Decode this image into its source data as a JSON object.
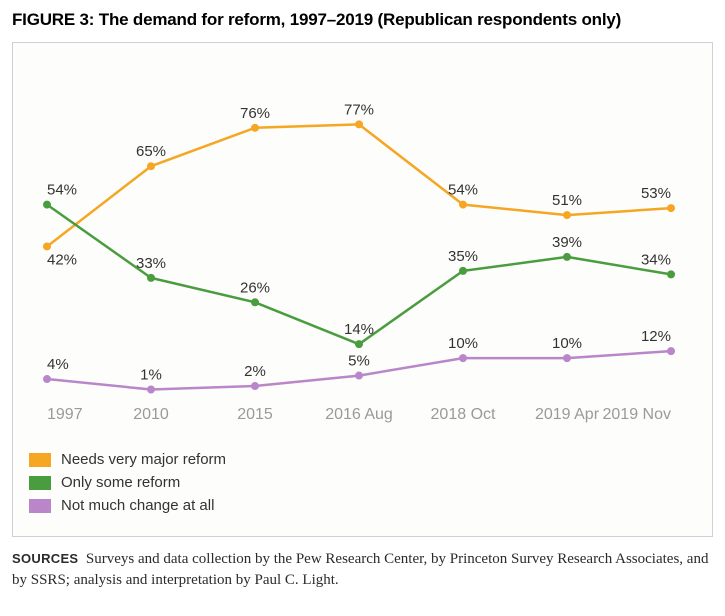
{
  "title": "FIGURE 3: The demand for reform, 1997–2019 (Republican respondents only)",
  "chart": {
    "type": "line",
    "background_color": "#fdfdfb",
    "border_color": "#d0d0d0",
    "categories": [
      "1997",
      "2010",
      "2015",
      "2016 Aug",
      "2018 Oct",
      "2019 Apr",
      "2019 Nov"
    ],
    "ylim": [
      0,
      90
    ],
    "x_label_color": "#9a9a9a",
    "x_label_fontsize": 16,
    "data_label_fontsize": 15,
    "data_label_color": "#333333",
    "line_width": 2.5,
    "marker_radius": 4,
    "series": [
      {
        "id": "major",
        "label": "Needs very major reform",
        "color": "#f5a623",
        "values": [
          42,
          65,
          76,
          77,
          54,
          51,
          53
        ]
      },
      {
        "id": "some",
        "label": "Only some reform",
        "color": "#4a9d3f",
        "values": [
          54,
          33,
          26,
          14,
          35,
          39,
          34
        ]
      },
      {
        "id": "none",
        "label": "Not much change at all",
        "color": "#b986c9",
        "values": [
          4,
          1,
          2,
          5,
          10,
          10,
          12
        ]
      }
    ],
    "legend": {
      "swatch_width": 22,
      "swatch_height": 14,
      "fontsize": 15
    }
  },
  "sources": {
    "label": "SOURCES",
    "text": "Surveys and data collection by the Pew Research Center, by Princeton Survey Research Associates, and by SSRS; analysis and interpretation by Paul C. Light."
  }
}
